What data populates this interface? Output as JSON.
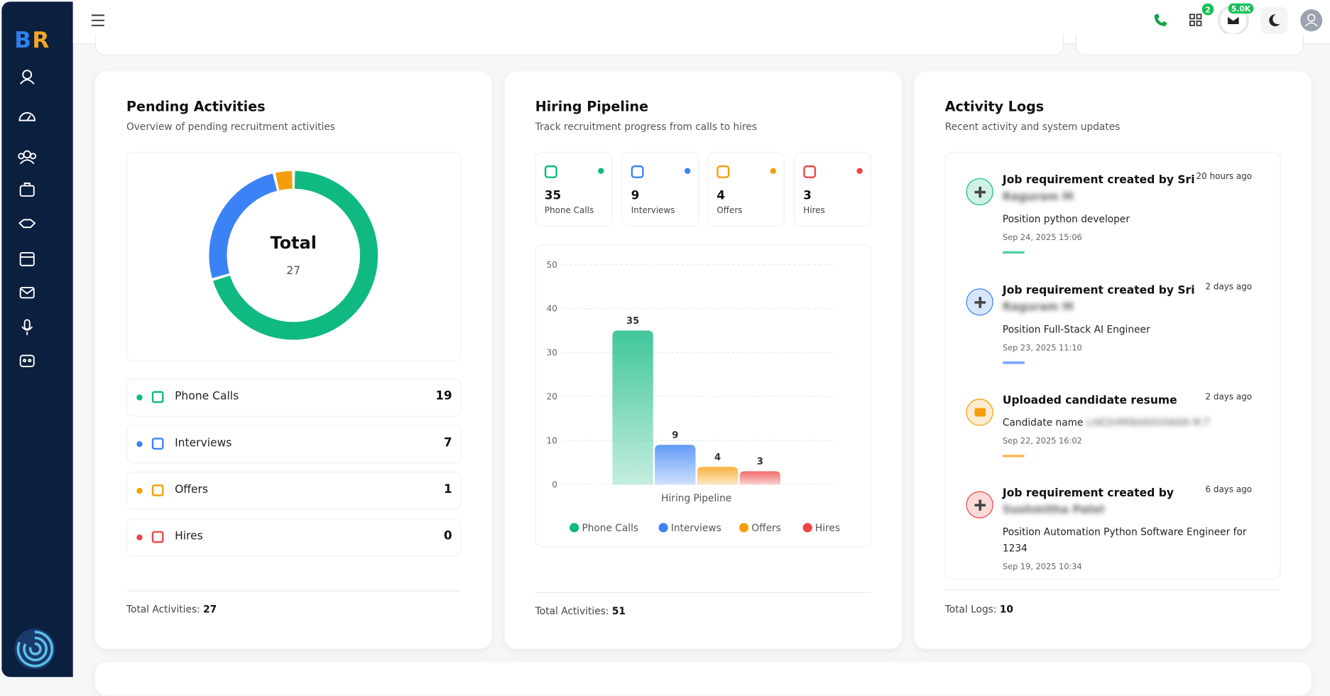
{
  "header": {
    "grid_badge": 2,
    "mail_badge": "5.0K"
  },
  "pending": {
    "title": "Pending Activities",
    "subtitle": "Overview of pending recruitment activities",
    "footer_label": "Total Activities:",
    "footer_value": 27
  },
  "pipeline": {
    "title": "Hiring Pipeline",
    "subtitle": "Track recruitment progress from calls to hires",
    "footer_label": "Total Activities:",
    "footer_value": 51
  },
  "logs": {
    "title": "Activity Logs",
    "subtitle": "Recent activity and system updates",
    "footer_label": "Total Logs:",
    "footer_value": 10,
    "entries": [
      {
        "title": "Job requirement created by Sri",
        "name": "Raguram M",
        "time": "20 hours ago",
        "detail_label": "Position",
        "detail": "python developer",
        "date": "Sep 24, 2025 15:06",
        "color": "#10b981"
      },
      {
        "title": "Job requirement created by Sri",
        "name": "Raguram M",
        "time": "2 days ago",
        "detail_label": "Position",
        "detail": "Full-Stack AI Engineer",
        "date": "Sep 23, 2025 11:10",
        "color": "#3b82f6"
      },
      {
        "title": "Uploaded candidate resume",
        "name": null,
        "time": "2 days ago",
        "detail_label": "Candidate name",
        "detail": "LAKSHMINARAYANAN M.T",
        "date": "Sep 22, 2025 16:02",
        "color": "#f59e0b"
      },
      {
        "title": "Job requirement created by",
        "name": "Sushmitha Patel",
        "time": "6 days ago",
        "detail_label": "Position",
        "detail": "Automation Python Software Engineer for 1234",
        "date": "Sep 19, 2025 10:34",
        "color": "#ef4444"
      }
    ]
  },
  "chart_data": [
    {
      "type": "donut",
      "center_label": "Total",
      "center_value": 27,
      "categories": [
        "Phone Calls",
        "Interviews",
        "Offers",
        "Hires"
      ],
      "values": [
        19,
        7,
        1,
        0
      ],
      "colors": [
        "#10b981",
        "#3b82f6",
        "#f59e0b",
        "#ef4444"
      ]
    },
    {
      "type": "bar",
      "x_label": "Hiring Pipeline",
      "categories": [
        "Phone Calls",
        "Interviews",
        "Offers",
        "Hires"
      ],
      "values": [
        35,
        9,
        4,
        3
      ],
      "colors": [
        "#10b981",
        "#3b82f6",
        "#f59e0b",
        "#ef4444"
      ],
      "ylim": [
        0,
        50
      ],
      "yticks": [
        0,
        10,
        20,
        30,
        40,
        50
      ],
      "grid": true
    }
  ]
}
